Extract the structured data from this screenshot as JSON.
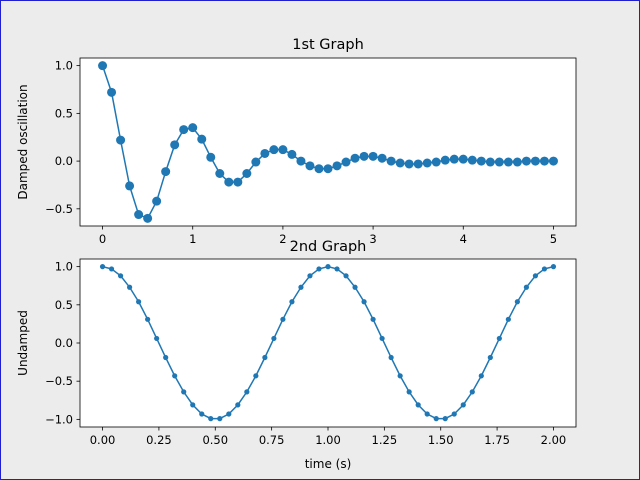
{
  "colors": {
    "series": "#1f77b4",
    "background": "#ececec",
    "axes": "#ffffff",
    "border": "#1f1fd0"
  },
  "chart_data": [
    {
      "type": "line",
      "title": "1st Graph",
      "xlabel": "",
      "ylabel": "Damped oscillation",
      "xlim": [
        -0.25,
        5.25
      ],
      "ylim": [
        -0.68,
        1.08
      ],
      "xticks": [
        0,
        1,
        2,
        3,
        4,
        5
      ],
      "xtick_labels": [
        "0",
        "1",
        "2",
        "3",
        "4",
        "5"
      ],
      "yticks": [
        -0.5,
        0.0,
        0.5,
        1.0
      ],
      "ytick_labels": [
        "−0.5",
        "0.0",
        "0.5",
        "1.0"
      ],
      "marker": "o",
      "series": [
        {
          "x": [
            0.0,
            0.1,
            0.2,
            0.3,
            0.4,
            0.5,
            0.6,
            0.7,
            0.8,
            0.9,
            1.0,
            1.1,
            1.2,
            1.3,
            1.4,
            1.5,
            1.6,
            1.7,
            1.8,
            1.9,
            2.0,
            2.1,
            2.2,
            2.3,
            2.4,
            2.5,
            2.6,
            2.7,
            2.8,
            2.9,
            3.0,
            3.1,
            3.2,
            3.3,
            3.4,
            3.5,
            3.6,
            3.7,
            3.8,
            3.9,
            4.0,
            4.1,
            4.2,
            4.3,
            4.4,
            4.5,
            4.6,
            4.7,
            4.8,
            4.9,
            5.0
          ],
          "y": [
            1.0,
            0.72,
            0.22,
            -0.26,
            -0.56,
            -0.6,
            -0.42,
            -0.11,
            0.17,
            0.33,
            0.35,
            0.23,
            0.04,
            -0.13,
            -0.22,
            -0.22,
            -0.13,
            -0.01,
            0.08,
            0.12,
            0.12,
            0.07,
            0.0,
            -0.05,
            -0.08,
            -0.08,
            -0.05,
            -0.01,
            0.03,
            0.05,
            0.05,
            0.03,
            0.0,
            -0.02,
            -0.03,
            -0.03,
            -0.02,
            -0.01,
            0.01,
            0.02,
            0.02,
            0.01,
            0.0,
            -0.01,
            -0.01,
            -0.01,
            -0.01,
            0.0,
            0.0,
            0.0,
            0.0
          ]
        }
      ]
    },
    {
      "type": "line",
      "title": "2nd Graph",
      "xlabel": "time (s)",
      "ylabel": "Undamped",
      "xlim": [
        -0.1,
        2.1
      ],
      "ylim": [
        -1.1,
        1.1
      ],
      "xticks": [
        0.0,
        0.25,
        0.5,
        0.75,
        1.0,
        1.25,
        1.5,
        1.75,
        2.0
      ],
      "xtick_labels": [
        "0.00",
        "0.25",
        "0.50",
        "0.75",
        "1.00",
        "1.25",
        "1.50",
        "1.75",
        "2.00"
      ],
      "yticks": [
        -1.0,
        -0.5,
        0.0,
        0.5,
        1.0
      ],
      "ytick_labels": [
        "−1.0",
        "−0.5",
        "0.0",
        "0.5",
        "1.0"
      ],
      "marker": ".",
      "series": [
        {
          "x": [
            0.0,
            0.04,
            0.08,
            0.12,
            0.16,
            0.2,
            0.24,
            0.28,
            0.32,
            0.36,
            0.4,
            0.44,
            0.48,
            0.52,
            0.56,
            0.6,
            0.64,
            0.68,
            0.72,
            0.76,
            0.8,
            0.84,
            0.88,
            0.92,
            0.96,
            1.0,
            1.04,
            1.08,
            1.12,
            1.16,
            1.2,
            1.24,
            1.28,
            1.32,
            1.36,
            1.4,
            1.44,
            1.48,
            1.52,
            1.56,
            1.6,
            1.64,
            1.68,
            1.72,
            1.76,
            1.8,
            1.84,
            1.88,
            1.92,
            1.96,
            2.0
          ],
          "y": [
            1.0,
            0.97,
            0.88,
            0.73,
            0.54,
            0.31,
            0.06,
            -0.19,
            -0.43,
            -0.64,
            -0.81,
            -0.93,
            -0.99,
            -0.99,
            -0.93,
            -0.81,
            -0.64,
            -0.43,
            -0.19,
            0.06,
            0.31,
            0.54,
            0.73,
            0.88,
            0.97,
            1.0,
            0.97,
            0.88,
            0.73,
            0.54,
            0.31,
            0.06,
            -0.19,
            -0.43,
            -0.64,
            -0.81,
            -0.93,
            -0.99,
            -0.99,
            -0.93,
            -0.81,
            -0.64,
            -0.43,
            -0.19,
            0.06,
            0.31,
            0.54,
            0.73,
            0.88,
            0.97,
            1.0
          ]
        }
      ]
    }
  ]
}
